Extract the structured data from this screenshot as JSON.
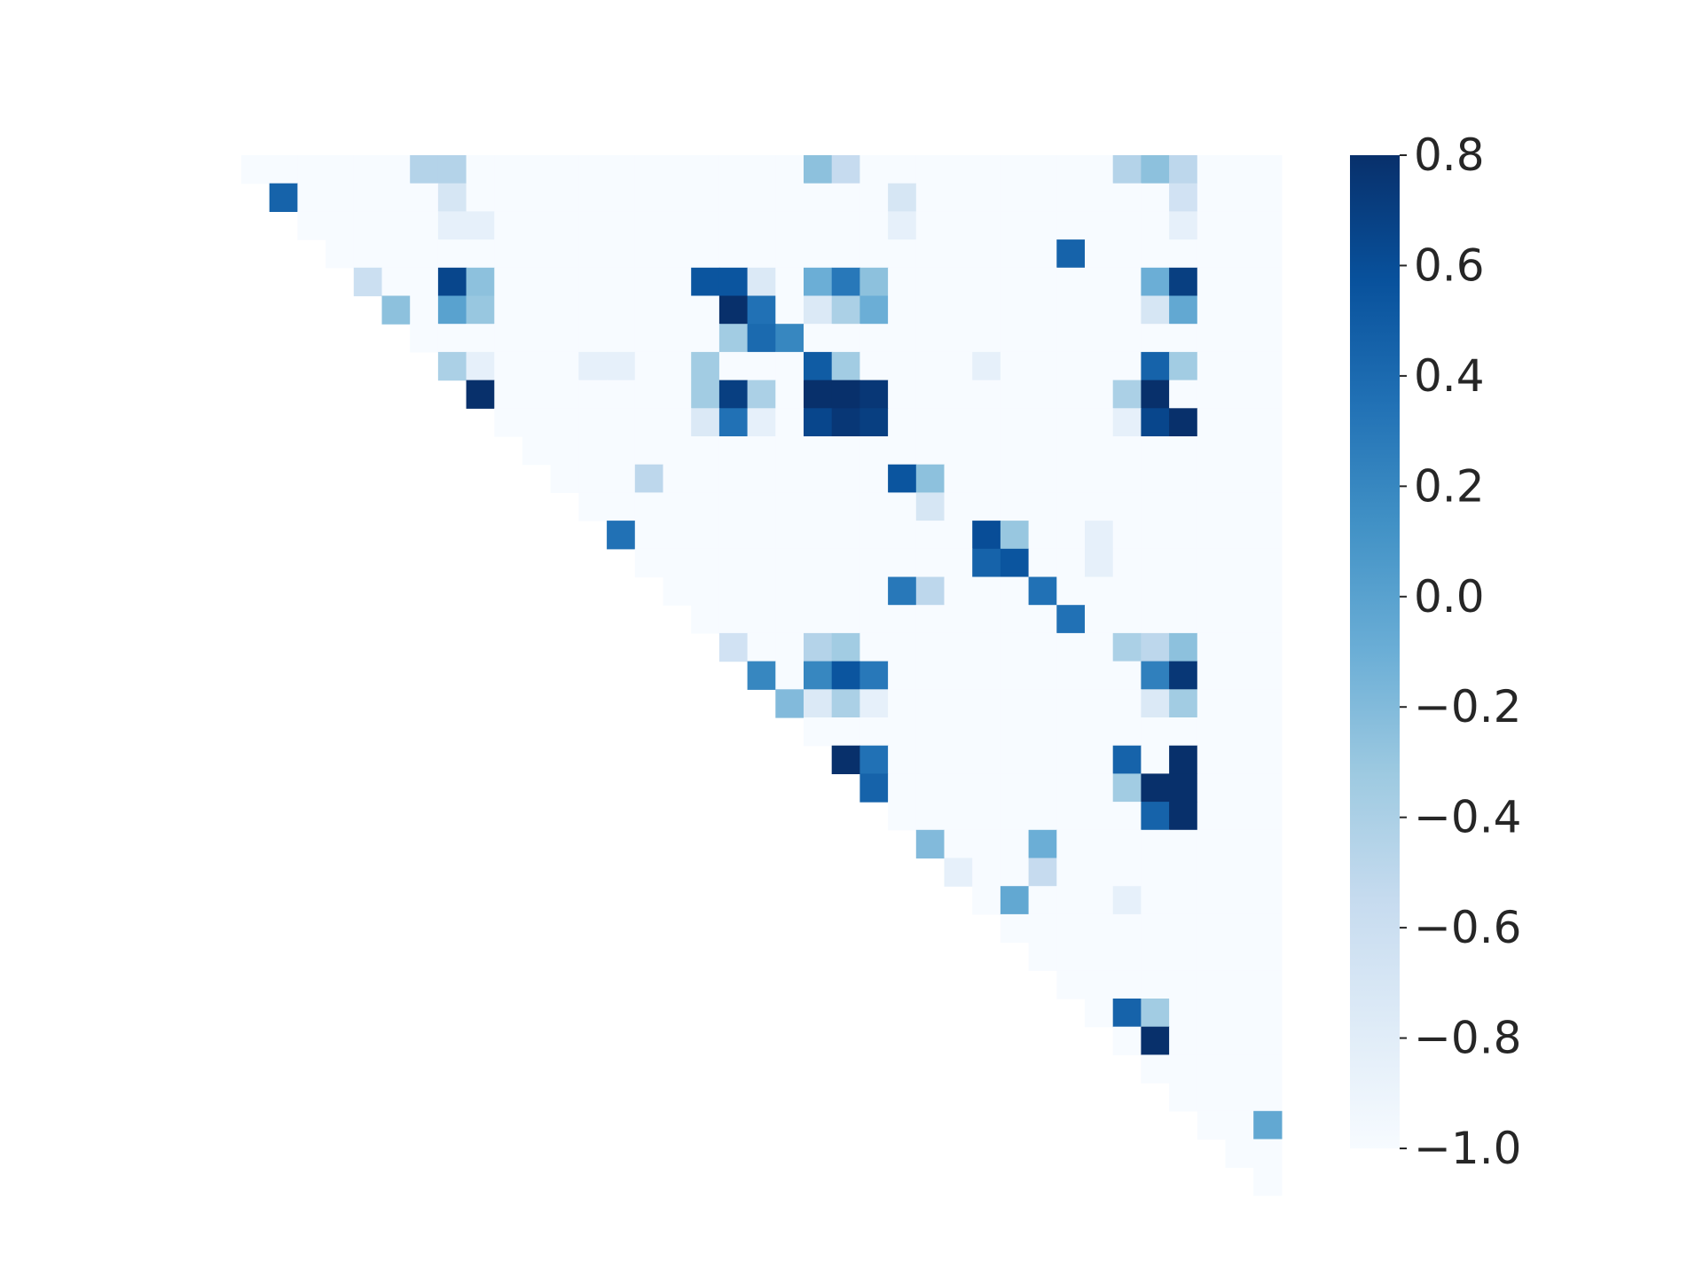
{
  "chart_data": {
    "type": "heatmap",
    "title": "",
    "xlabel": "",
    "ylabel": "",
    "n": 37,
    "mask": "lower-triangle-blank",
    "colormap": "Blues",
    "colormap_stops": [
      "#f7fbff",
      "#deebf7",
      "#c6dbef",
      "#9ecae1",
      "#6baed6",
      "#4292c6",
      "#2171b5",
      "#08519c",
      "#08306b"
    ],
    "background_value": -1.0,
    "colorbar": {
      "range": [
        -1.0,
        0.8
      ],
      "ticks": [
        0.8,
        0.6,
        0.4,
        0.2,
        0.0,
        -0.2,
        -0.4,
        -0.6,
        -0.8,
        -1.0
      ],
      "tick_labels": [
        "0.8",
        "0.6",
        "0.4",
        "0.2",
        "0.0",
        "−0.2",
        "−0.4",
        "−0.6",
        "−0.8",
        "−1.0"
      ]
    },
    "nonzero_cells": [
      [
        0,
        6,
        -0.45
      ],
      [
        0,
        7,
        -0.45
      ],
      [
        0,
        20,
        -0.25
      ],
      [
        0,
        21,
        -0.55
      ],
      [
        0,
        31,
        -0.45
      ],
      [
        0,
        32,
        -0.25
      ],
      [
        0,
        33,
        -0.5
      ],
      [
        1,
        1,
        0.45
      ],
      [
        1,
        7,
        -0.7
      ],
      [
        1,
        23,
        -0.7
      ],
      [
        1,
        33,
        -0.65
      ],
      [
        2,
        7,
        -0.85
      ],
      [
        2,
        8,
        -0.85
      ],
      [
        2,
        23,
        -0.85
      ],
      [
        2,
        33,
        -0.85
      ],
      [
        3,
        29,
        0.45
      ],
      [
        4,
        4,
        -0.6
      ],
      [
        4,
        7,
        0.65
      ],
      [
        4,
        8,
        -0.25
      ],
      [
        4,
        16,
        0.55
      ],
      [
        4,
        17,
        0.55
      ],
      [
        4,
        18,
        -0.75
      ],
      [
        4,
        20,
        -0.1
      ],
      [
        4,
        21,
        0.3
      ],
      [
        4,
        22,
        -0.25
      ],
      [
        4,
        32,
        -0.1
      ],
      [
        4,
        33,
        0.7
      ],
      [
        5,
        5,
        -0.25
      ],
      [
        5,
        7,
        0.0
      ],
      [
        5,
        8,
        -0.3
      ],
      [
        5,
        17,
        0.8
      ],
      [
        5,
        18,
        0.35
      ],
      [
        5,
        20,
        -0.75
      ],
      [
        5,
        21,
        -0.4
      ],
      [
        5,
        22,
        -0.1
      ],
      [
        5,
        32,
        -0.7
      ],
      [
        5,
        33,
        -0.05
      ],
      [
        6,
        17,
        -0.35
      ],
      [
        6,
        18,
        0.4
      ],
      [
        6,
        19,
        0.2
      ],
      [
        7,
        7,
        -0.4
      ],
      [
        7,
        8,
        -0.85
      ],
      [
        7,
        12,
        -0.85
      ],
      [
        7,
        13,
        -0.85
      ],
      [
        7,
        16,
        -0.35
      ],
      [
        7,
        20,
        0.5
      ],
      [
        7,
        21,
        -0.35
      ],
      [
        7,
        26,
        -0.85
      ],
      [
        7,
        32,
        0.45
      ],
      [
        7,
        33,
        -0.35
      ],
      [
        8,
        8,
        0.8
      ],
      [
        8,
        16,
        -0.35
      ],
      [
        8,
        17,
        0.7
      ],
      [
        8,
        18,
        -0.4
      ],
      [
        8,
        20,
        0.8
      ],
      [
        8,
        21,
        0.8
      ],
      [
        8,
        22,
        0.75
      ],
      [
        8,
        31,
        -0.4
      ],
      [
        8,
        32,
        0.8
      ],
      [
        9,
        16,
        -0.75
      ],
      [
        9,
        17,
        0.35
      ],
      [
        9,
        18,
        -0.85
      ],
      [
        9,
        20,
        0.65
      ],
      [
        9,
        21,
        0.75
      ],
      [
        9,
        22,
        0.7
      ],
      [
        9,
        31,
        -0.85
      ],
      [
        9,
        32,
        0.65
      ],
      [
        9,
        33,
        0.8
      ],
      [
        11,
        14,
        -0.5
      ],
      [
        11,
        23,
        0.55
      ],
      [
        11,
        24,
        -0.25
      ],
      [
        12,
        24,
        -0.7
      ],
      [
        13,
        13,
        0.35
      ],
      [
        13,
        26,
        0.6
      ],
      [
        13,
        27,
        -0.3
      ],
      [
        13,
        30,
        -0.85
      ],
      [
        14,
        26,
        0.45
      ],
      [
        14,
        27,
        0.55
      ],
      [
        14,
        30,
        -0.85
      ],
      [
        15,
        23,
        0.3
      ],
      [
        15,
        24,
        -0.5
      ],
      [
        15,
        28,
        0.35
      ],
      [
        16,
        29,
        0.35
      ],
      [
        17,
        17,
        -0.65
      ],
      [
        17,
        20,
        -0.45
      ],
      [
        17,
        21,
        -0.35
      ],
      [
        17,
        31,
        -0.4
      ],
      [
        17,
        32,
        -0.5
      ],
      [
        17,
        33,
        -0.25
      ],
      [
        18,
        18,
        0.2
      ],
      [
        18,
        20,
        0.2
      ],
      [
        18,
        21,
        0.55
      ],
      [
        18,
        22,
        0.3
      ],
      [
        18,
        32,
        0.25
      ],
      [
        18,
        33,
        0.75
      ],
      [
        19,
        19,
        -0.2
      ],
      [
        19,
        20,
        -0.75
      ],
      [
        19,
        21,
        -0.4
      ],
      [
        19,
        22,
        -0.85
      ],
      [
        19,
        32,
        -0.75
      ],
      [
        19,
        33,
        -0.35
      ],
      [
        21,
        21,
        0.8
      ],
      [
        21,
        22,
        0.35
      ],
      [
        21,
        31,
        0.45
      ],
      [
        21,
        33,
        0.8
      ],
      [
        22,
        22,
        0.45
      ],
      [
        22,
        31,
        -0.35
      ],
      [
        22,
        32,
        0.8
      ],
      [
        22,
        33,
        0.8
      ],
      [
        23,
        32,
        0.45
      ],
      [
        23,
        33,
        0.8
      ],
      [
        24,
        24,
        -0.2
      ],
      [
        24,
        28,
        -0.1
      ],
      [
        25,
        25,
        -0.85
      ],
      [
        25,
        28,
        -0.55
      ],
      [
        26,
        27,
        -0.05
      ],
      [
        26,
        31,
        -0.85
      ],
      [
        30,
        31,
        0.45
      ],
      [
        30,
        32,
        -0.35
      ],
      [
        31,
        32,
        0.8
      ],
      [
        34,
        36,
        -0.05
      ]
    ]
  }
}
